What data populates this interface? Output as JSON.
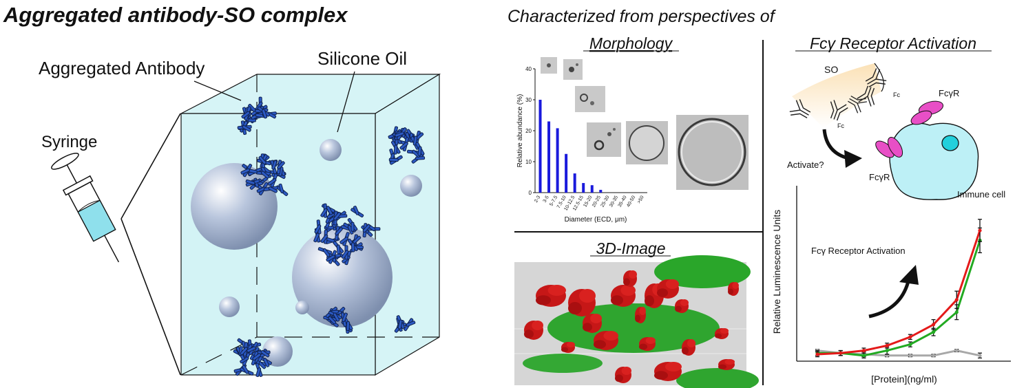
{
  "left": {
    "title": "Aggregated antibody-SO complex",
    "label_aggregated_antibody": "Aggregated Antibody",
    "label_silicone_oil": "Silicone Oil",
    "label_syringe": "Syringe"
  },
  "right": {
    "heading": "Characterized from perspectives of",
    "panel_morphology": "Morphology",
    "panel_3d": "3D-Image",
    "panel_fc": "Fcγ Receptor Activation"
  },
  "morphology_chart": {
    "chart_data": {
      "type": "bar",
      "ylabel": "Relative abundance (%)",
      "xlabel": "Diameter (ECD, μm)",
      "ylim": [
        0,
        40
      ],
      "yticks": [
        "0",
        "10",
        "20",
        "30",
        "40"
      ],
      "categories": [
        "2-3",
        "3-5",
        "5-7.5",
        "7.5-10",
        "10-12.5",
        "12.5-15",
        "15-20",
        "20-25",
        "25-30",
        "30-35",
        "35-40",
        "40-50",
        ">50"
      ],
      "values": [
        30,
        23,
        20.8,
        12.5,
        6.2,
        3.1,
        2.4,
        0.9,
        0,
        0,
        0,
        0,
        0
      ],
      "bar_color": "#1a1adc"
    }
  },
  "fc_diagram": {
    "label_so": "SO",
    "label_fc_top": "Fc",
    "label_fc_bottom": "Fc",
    "label_fcgr_top": "FcγR",
    "label_fcgr_left": "FcγR",
    "label_activate": "Activate?",
    "label_immune_cell": "Immune cell"
  },
  "activation_chart": {
    "chart_data": {
      "type": "line",
      "ylabel": "Relative Luminescence Units",
      "xlabel": "[Protein](ng/ml)",
      "annotation": "Fcγ Receptor Activation",
      "x": [
        1,
        2,
        3,
        4,
        5,
        6,
        7,
        8
      ],
      "series": [
        {
          "color": "#e41a1a",
          "values": [
            0.0,
            0.01,
            0.03,
            0.07,
            0.14,
            0.24,
            0.44,
            1.0
          ],
          "err": [
            0.02,
            0.02,
            0.02,
            0.02,
            0.02,
            0.04,
            0.07,
            0.09
          ]
        },
        {
          "color": "#22aa22",
          "values": [
            0.01,
            0.01,
            -0.01,
            0.03,
            0.08,
            0.18,
            0.34,
            0.92
          ],
          "err": [
            0.02,
            0.02,
            0.02,
            0.03,
            0.02,
            0.03,
            0.06,
            0.1
          ]
        },
        {
          "color": "#a8a8a8",
          "values": [
            0.03,
            0.01,
            0.0,
            -0.01,
            -0.01,
            -0.01,
            0.03,
            -0.01
          ],
          "err": [
            0.01,
            0.02,
            0.02,
            0.01,
            0.01,
            0.01,
            0.01,
            0.02
          ]
        }
      ],
      "ylim": [
        -0.1,
        1.1
      ]
    }
  }
}
